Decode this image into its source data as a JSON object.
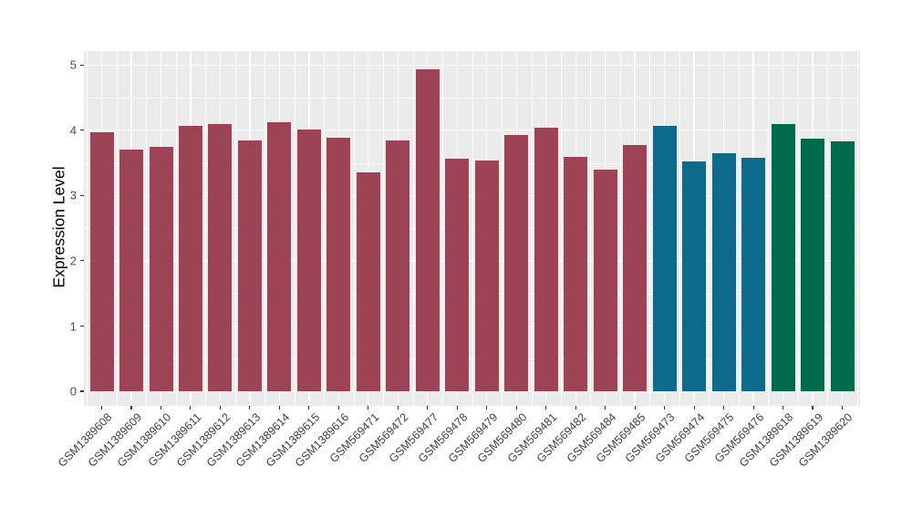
{
  "chart_data": {
    "type": "bar",
    "title": "",
    "xlabel": "",
    "ylabel": "Expression Level",
    "ylim": [
      0,
      5
    ],
    "yticks": [
      0,
      1,
      2,
      3,
      4,
      5
    ],
    "ytick_labels": [
      "0",
      "1",
      "2",
      "3",
      "4",
      "5"
    ],
    "y_minor_step": 0.5,
    "grid": "on",
    "legend_position": "none",
    "panel_background_color": "#EBEBEB",
    "grid_color": "#FFFFFF",
    "axis_text_color": "#404040",
    "categories": [
      "GSM1389608",
      "GSM1389609",
      "GSM1389610",
      "GSM1389611",
      "GSM1389612",
      "GSM1389613",
      "GSM1389614",
      "GSM1389615",
      "GSM1389616",
      "GSM569471",
      "GSM569472",
      "GSM569477",
      "GSM569478",
      "GSM569479",
      "GSM569480",
      "GSM569481",
      "GSM569482",
      "GSM569484",
      "GSM569485",
      "GSM569473",
      "GSM569474",
      "GSM569475",
      "GSM569476",
      "GSM1389618",
      "GSM1389619",
      "GSM1389620"
    ],
    "values": [
      3.97,
      3.7,
      3.74,
      4.07,
      4.1,
      3.84,
      4.12,
      4.01,
      3.88,
      3.35,
      3.84,
      4.93,
      3.57,
      3.54,
      3.93,
      4.04,
      3.6,
      3.4,
      3.78,
      4.07,
      3.53,
      3.65,
      3.58,
      4.09,
      3.87,
      3.83
    ],
    "groups": [
      "group1",
      "group1",
      "group1",
      "group1",
      "group1",
      "group1",
      "group1",
      "group1",
      "group1",
      "group1",
      "group1",
      "group1",
      "group1",
      "group1",
      "group1",
      "group1",
      "group1",
      "group1",
      "group1",
      "group2",
      "group2",
      "group2",
      "group2",
      "group3",
      "group3",
      "group3"
    ],
    "group_colors": {
      "group1": "#9C4355",
      "group2": "#0D6A8B",
      "group3": "#006B4C"
    }
  }
}
